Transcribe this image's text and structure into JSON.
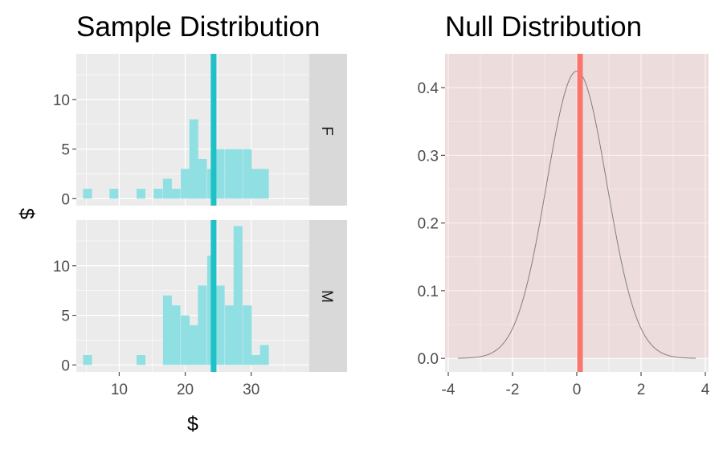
{
  "colors": {
    "panel_bg": "#ebebeb",
    "grid": "#ffffff",
    "strip_bg": "#d9d9d9",
    "bar_fill": "#8fdfe3",
    "vline_left": "#1ec1c6",
    "null_shade": "#f8766d",
    "null_shade_opacity": 0.12,
    "vline_right": "#f8766d",
    "density_line": "#808080",
    "tick": "#4d4d4d",
    "text": "#000000"
  },
  "chart_data": [
    {
      "type": "bar",
      "title": "Sample Distribution",
      "xlabel": "$",
      "ylabel": "$",
      "xlim": [
        3.5,
        38.8
      ],
      "x_ticks": [
        10,
        20,
        30
      ],
      "x_tick_labels": [
        "10",
        "20",
        "30"
      ],
      "bin_width": 1.34,
      "observed_stat": 24.3,
      "facets": [
        {
          "label": "F",
          "ylim": [
            -0.7,
            14.6
          ],
          "y_ticks": [
            0,
            5,
            10
          ],
          "y_tick_labels": [
            "0",
            "5",
            "10"
          ],
          "bars": [
            {
              "x": 5.2,
              "y": 1
            },
            {
              "x": 9.2,
              "y": 1
            },
            {
              "x": 13.3,
              "y": 1
            },
            {
              "x": 15.9,
              "y": 1
            },
            {
              "x": 17.3,
              "y": 2
            },
            {
              "x": 18.6,
              "y": 1
            },
            {
              "x": 20.0,
              "y": 3
            },
            {
              "x": 21.3,
              "y": 8
            },
            {
              "x": 22.6,
              "y": 4
            },
            {
              "x": 24.0,
              "y": 3
            },
            {
              "x": 25.3,
              "y": 5
            },
            {
              "x": 26.7,
              "y": 5
            },
            {
              "x": 28.0,
              "y": 5
            },
            {
              "x": 29.4,
              "y": 5
            },
            {
              "x": 30.7,
              "y": 3
            },
            {
              "x": 32.0,
              "y": 3
            }
          ]
        },
        {
          "label": "M",
          "ylim": [
            -0.7,
            14.6
          ],
          "y_ticks": [
            0,
            5,
            10
          ],
          "y_tick_labels": [
            "0",
            "5",
            "10"
          ],
          "bars": [
            {
              "x": 5.2,
              "y": 1
            },
            {
              "x": 13.3,
              "y": 1
            },
            {
              "x": 17.3,
              "y": 7
            },
            {
              "x": 18.6,
              "y": 6
            },
            {
              "x": 20.0,
              "y": 5
            },
            {
              "x": 21.3,
              "y": 4
            },
            {
              "x": 22.6,
              "y": 8
            },
            {
              "x": 24.0,
              "y": 11
            },
            {
              "x": 25.3,
              "y": 8
            },
            {
              "x": 26.7,
              "y": 6
            },
            {
              "x": 28.0,
              "y": 14
            },
            {
              "x": 29.4,
              "y": 6
            },
            {
              "x": 30.7,
              "y": 1
            },
            {
              "x": 32.0,
              "y": 2
            }
          ]
        }
      ]
    },
    {
      "type": "line",
      "title": "Null Distribution",
      "xlabel": "",
      "ylabel": "",
      "xlim": [
        -4.1,
        4.1
      ],
      "ylim": [
        -0.02,
        0.45
      ],
      "x_ticks": [
        -4,
        -2,
        0,
        2,
        4
      ],
      "x_tick_labels": [
        "-4",
        "-2",
        "0",
        "2",
        "4"
      ],
      "y_ticks": [
        0.0,
        0.1,
        0.2,
        0.3,
        0.4
      ],
      "y_tick_labels": [
        "0.0",
        "0.1",
        "0.2",
        "0.3",
        "0.4"
      ],
      "observed_stat": 0.1,
      "shade_range": [
        -4.1,
        4.1
      ],
      "density": {
        "mean": 0.0,
        "sd": 0.94,
        "x_range": [
          -3.7,
          3.7
        ]
      }
    }
  ]
}
